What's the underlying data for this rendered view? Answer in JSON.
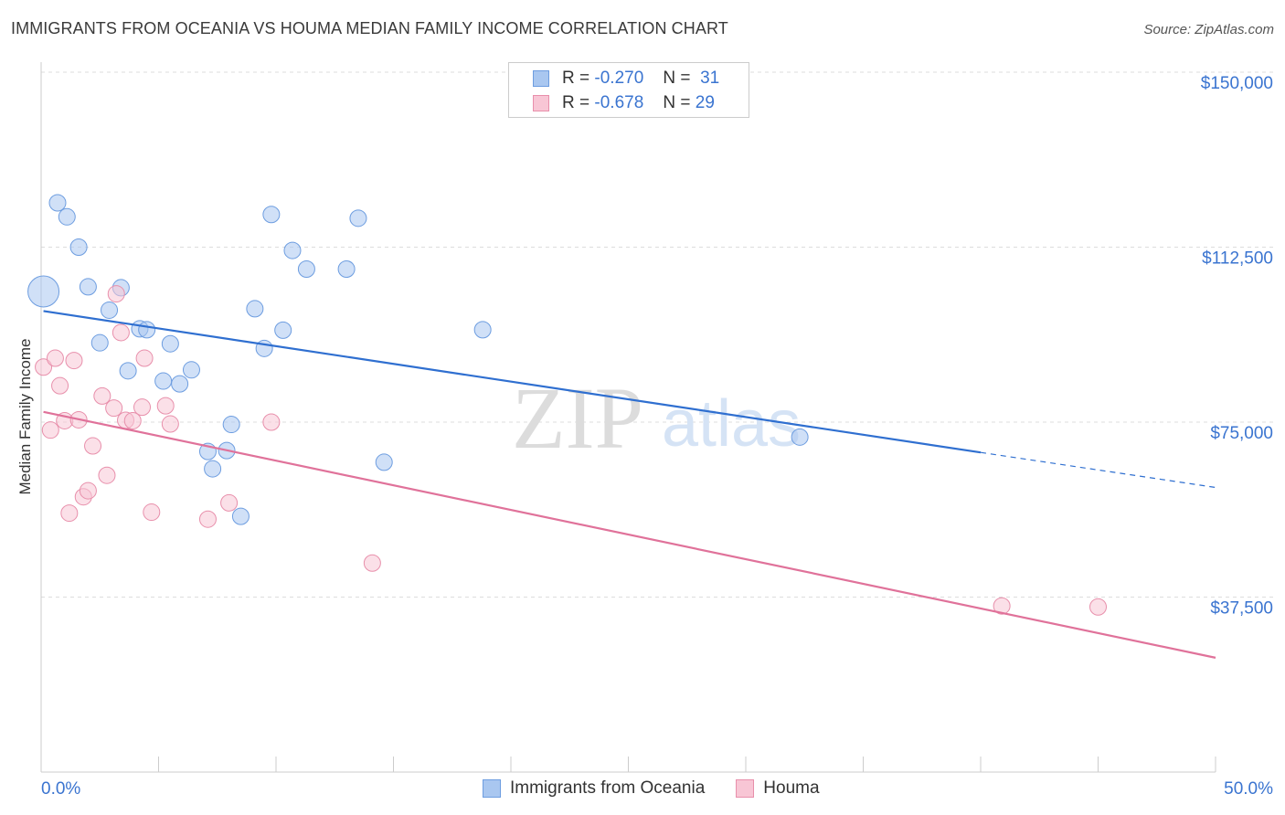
{
  "header": {
    "title": "IMMIGRANTS FROM OCEANIA VS HOUMA MEDIAN FAMILY INCOME CORRELATION CHART",
    "source": "Source: ZipAtlas.com"
  },
  "watermark": {
    "zip": "ZIP",
    "atlas": "atlas"
  },
  "legend": {
    "rows": [
      {
        "r_label": "R =",
        "r_value": "-0.270",
        "n_label": "N =",
        "n_value": "31",
        "color": "#a9c7f0",
        "border": "#6d9de0"
      },
      {
        "r_label": "R =",
        "r_value": "-0.678",
        "n_label": "N =",
        "n_value": "29",
        "color": "#f8c6d5",
        "border": "#e88fab"
      }
    ]
  },
  "bottom_legend": {
    "items": [
      {
        "label": "Immigrants from Oceania",
        "color": "#a9c7f0",
        "border": "#6d9de0"
      },
      {
        "label": "Houma",
        "color": "#f8c6d5",
        "border": "#e88fab"
      }
    ]
  },
  "chart_data": {
    "type": "scatter",
    "title": "IMMIGRANTS FROM OCEANIA VS HOUMA MEDIAN FAMILY INCOME CORRELATION CHART",
    "xlabel": "",
    "ylabel": "Median Family Income",
    "xlim": [
      0,
      50
    ],
    "ylim": [
      0,
      150000
    ],
    "x_tick_labels": [
      "0.0%",
      "50.0%"
    ],
    "y_ticks": [
      37500,
      75000,
      112500,
      150000
    ],
    "y_tick_labels": [
      "$37,500",
      "$75,000",
      "$112,500",
      "$150,000"
    ],
    "grid": true,
    "legend_position": "top-center",
    "series": [
      {
        "name": "Immigrants from Oceania",
        "color": "#a9c7f0",
        "stroke": "#6d9de0",
        "line_color": "#2f6fd0",
        "trend": {
          "x0": 0.1,
          "y0": 98800,
          "x1": 40,
          "y1": 68500,
          "x_end": 50,
          "y_end": 61000
        },
        "points": [
          {
            "x": 0.1,
            "y": 103000,
            "big": true
          },
          {
            "x": 0.7,
            "y": 122000
          },
          {
            "x": 1.1,
            "y": 119000
          },
          {
            "x": 1.6,
            "y": 112500
          },
          {
            "x": 2.0,
            "y": 104000
          },
          {
            "x": 2.5,
            "y": 92000
          },
          {
            "x": 2.9,
            "y": 99000
          },
          {
            "x": 3.4,
            "y": 103800
          },
          {
            "x": 3.7,
            "y": 86000
          },
          {
            "x": 4.2,
            "y": 95000
          },
          {
            "x": 4.5,
            "y": 94800
          },
          {
            "x": 5.2,
            "y": 83800
          },
          {
            "x": 5.5,
            "y": 91800
          },
          {
            "x": 5.9,
            "y": 83200
          },
          {
            "x": 6.4,
            "y": 86200
          },
          {
            "x": 7.1,
            "y": 68700
          },
          {
            "x": 7.3,
            "y": 65000
          },
          {
            "x": 7.9,
            "y": 68900
          },
          {
            "x": 8.1,
            "y": 74500
          },
          {
            "x": 8.5,
            "y": 54800
          },
          {
            "x": 9.1,
            "y": 99300
          },
          {
            "x": 9.5,
            "y": 90800
          },
          {
            "x": 9.8,
            "y": 119500
          },
          {
            "x": 10.3,
            "y": 94700
          },
          {
            "x": 10.7,
            "y": 111800
          },
          {
            "x": 11.3,
            "y": 107800
          },
          {
            "x": 13.0,
            "y": 107800
          },
          {
            "x": 13.5,
            "y": 118700
          },
          {
            "x": 14.6,
            "y": 66400
          },
          {
            "x": 18.8,
            "y": 94800
          },
          {
            "x": 32.3,
            "y": 71800
          }
        ]
      },
      {
        "name": "Houma",
        "color": "#f8c6d5",
        "stroke": "#e88fab",
        "line_color": "#e0729a",
        "trend": {
          "x0": 0.1,
          "y0": 77200,
          "x1": 50,
          "y1": 24500
        },
        "points": [
          {
            "x": 0.1,
            "y": 86800
          },
          {
            "x": 0.4,
            "y": 73300
          },
          {
            "x": 0.6,
            "y": 88700
          },
          {
            "x": 0.8,
            "y": 82800
          },
          {
            "x": 1.0,
            "y": 75300
          },
          {
            "x": 1.2,
            "y": 55500
          },
          {
            "x": 1.4,
            "y": 88200
          },
          {
            "x": 1.6,
            "y": 75500
          },
          {
            "x": 1.8,
            "y": 59000
          },
          {
            "x": 2.0,
            "y": 60300
          },
          {
            "x": 2.2,
            "y": 69900
          },
          {
            "x": 2.6,
            "y": 80600
          },
          {
            "x": 2.8,
            "y": 63600
          },
          {
            "x": 3.1,
            "y": 78000
          },
          {
            "x": 3.2,
            "y": 102500
          },
          {
            "x": 3.4,
            "y": 94200
          },
          {
            "x": 3.6,
            "y": 75400
          },
          {
            "x": 3.9,
            "y": 75300
          },
          {
            "x": 4.3,
            "y": 78200
          },
          {
            "x": 4.4,
            "y": 88700
          },
          {
            "x": 4.7,
            "y": 55700
          },
          {
            "x": 5.3,
            "y": 78500
          },
          {
            "x": 5.5,
            "y": 74600
          },
          {
            "x": 7.1,
            "y": 54200
          },
          {
            "x": 8.0,
            "y": 57700
          },
          {
            "x": 9.8,
            "y": 75000
          },
          {
            "x": 14.1,
            "y": 44800
          },
          {
            "x": 40.9,
            "y": 35600
          },
          {
            "x": 45.0,
            "y": 35400
          }
        ]
      }
    ]
  }
}
